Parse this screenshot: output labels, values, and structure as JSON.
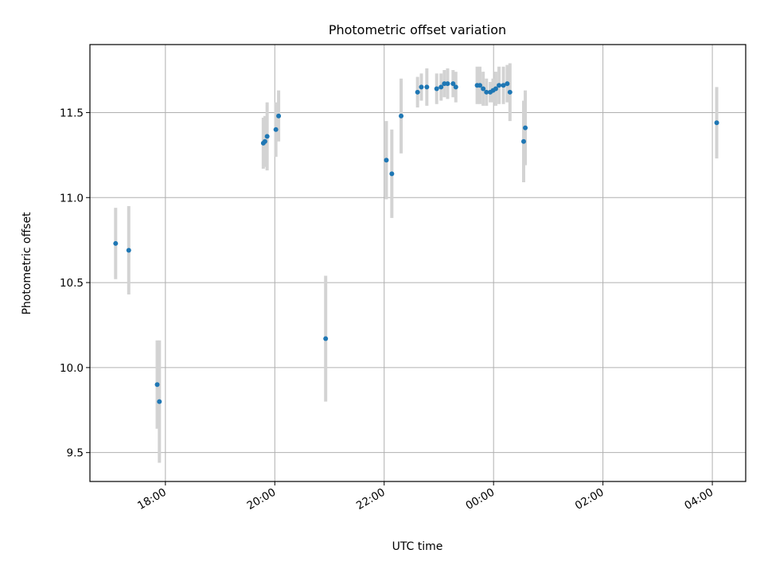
{
  "chart_data": {
    "type": "scatter",
    "title": "Photometric offset variation",
    "xlabel": "UTC time",
    "ylabel": "Photometric offset",
    "x_axis": {
      "kind": "time",
      "unit": "hours UTC (values beyond 24 fall on the following day)",
      "range": [
        16.62,
        28.61
      ],
      "ticks": [
        18,
        20,
        22,
        24,
        26,
        28
      ],
      "tick_labels": [
        "18:00",
        "20:00",
        "22:00",
        "00:00",
        "02:00",
        "04:00"
      ]
    },
    "y_axis": {
      "range": [
        9.33,
        11.9
      ],
      "ticks": [
        9.5,
        10.0,
        10.5,
        11.0,
        11.5
      ],
      "tick_labels": [
        "9.5",
        "10.0",
        "10.5",
        "11.0",
        "11.5"
      ]
    },
    "grid": true,
    "colors": {
      "marker": "#1f77b4",
      "errorbar": "#d3d3d3",
      "grid": "#b0b0b0"
    },
    "series": [
      {
        "points": [
          {
            "x": 17.09,
            "y": 10.73,
            "err": 0.21
          },
          {
            "x": 17.33,
            "y": 10.69,
            "err": 0.26
          },
          {
            "x": 17.85,
            "y": 9.9,
            "err": 0.26
          },
          {
            "x": 17.89,
            "y": 9.8,
            "err": 0.36
          },
          {
            "x": 19.79,
            "y": 11.32,
            "err": 0.15
          },
          {
            "x": 19.82,
            "y": 11.33,
            "err": 0.15
          },
          {
            "x": 19.86,
            "y": 11.36,
            "err": 0.2
          },
          {
            "x": 20.02,
            "y": 11.4,
            "err": 0.16
          },
          {
            "x": 20.07,
            "y": 11.48,
            "err": 0.15
          },
          {
            "x": 20.93,
            "y": 10.17,
            "err": 0.37
          },
          {
            "x": 22.04,
            "y": 11.22,
            "err": 0.23
          },
          {
            "x": 22.14,
            "y": 11.14,
            "err": 0.26
          },
          {
            "x": 22.31,
            "y": 11.48,
            "err": 0.22
          },
          {
            "x": 22.61,
            "y": 11.62,
            "err": 0.09
          },
          {
            "x": 22.68,
            "y": 11.65,
            "err": 0.08
          },
          {
            "x": 22.78,
            "y": 11.65,
            "err": 0.11
          },
          {
            "x": 22.96,
            "y": 11.64,
            "err": 0.09
          },
          {
            "x": 23.04,
            "y": 11.65,
            "err": 0.08
          },
          {
            "x": 23.1,
            "y": 11.67,
            "err": 0.08
          },
          {
            "x": 23.16,
            "y": 11.67,
            "err": 0.09
          },
          {
            "x": 23.26,
            "y": 11.67,
            "err": 0.08
          },
          {
            "x": 23.31,
            "y": 11.65,
            "err": 0.09
          },
          {
            "x": 23.7,
            "y": 11.66,
            "err": 0.11
          },
          {
            "x": 23.75,
            "y": 11.66,
            "err": 0.11
          },
          {
            "x": 23.81,
            "y": 11.64,
            "err": 0.1
          },
          {
            "x": 23.87,
            "y": 11.62,
            "err": 0.08
          },
          {
            "x": 23.94,
            "y": 11.62,
            "err": 0.06
          },
          {
            "x": 23.99,
            "y": 11.63,
            "err": 0.07
          },
          {
            "x": 24.04,
            "y": 11.64,
            "err": 0.1
          },
          {
            "x": 24.1,
            "y": 11.66,
            "err": 0.11
          },
          {
            "x": 24.18,
            "y": 11.66,
            "err": 0.11
          },
          {
            "x": 24.25,
            "y": 11.67,
            "err": 0.11
          },
          {
            "x": 24.3,
            "y": 11.62,
            "err": 0.17
          },
          {
            "x": 24.55,
            "y": 11.33,
            "err": 0.24
          },
          {
            "x": 24.58,
            "y": 11.41,
            "err": 0.22
          },
          {
            "x": 28.08,
            "y": 11.44,
            "err": 0.21
          }
        ]
      }
    ]
  }
}
